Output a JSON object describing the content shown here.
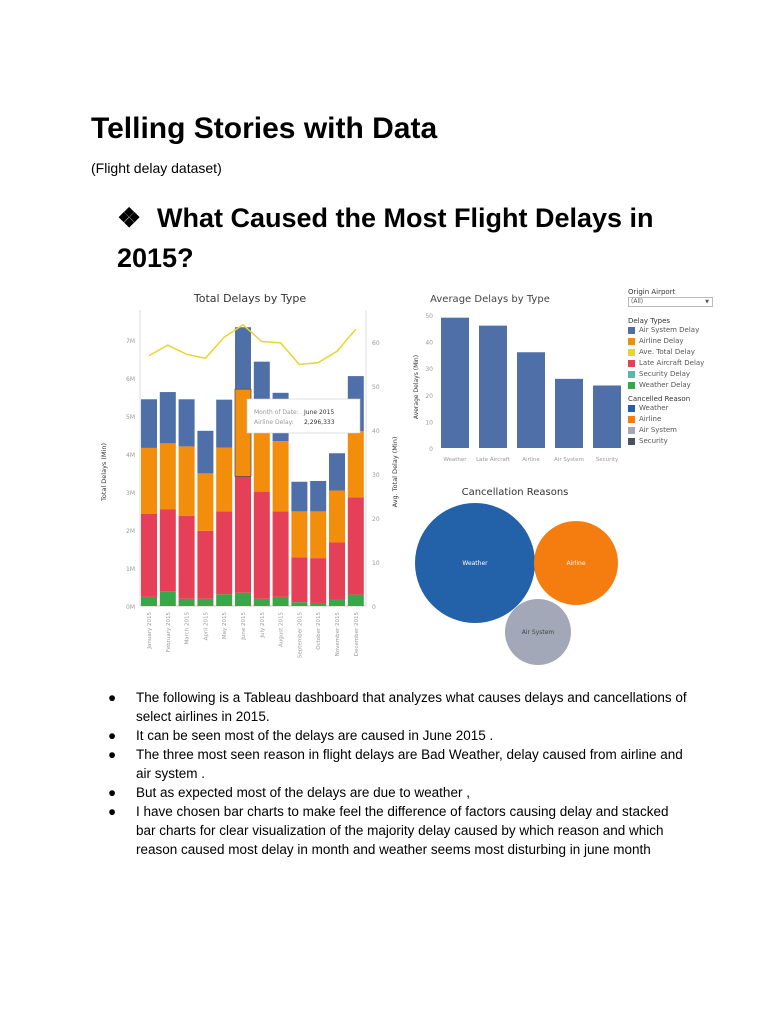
{
  "document": {
    "title": "Telling Stories with Data",
    "subtitle": "(Flight delay dataset)",
    "heading_bullet": "❖",
    "heading": "What Caused the Most Flight Delays in 2015?",
    "bullets": [
      "The following is a Tableau dashboard that analyzes what causes delays and cancellations of select airlines in 2015.",
      "It can be seen most of the delays are caused in June 2015 .",
      "The three most seen reason in flight delays are Bad Weather, delay caused  from airline and air system .",
      "But as expected most of the delays are due to weather ,",
      "I have chosen bar charts to make feel the difference of factors causing delay  and stacked bar charts for clear visualization of the majority delay caused by which reason and which reason caused most delay in month and weather seems most disturbing in june month"
    ]
  },
  "filter": {
    "label": "Origin Airport",
    "value": "(All)"
  },
  "legend": {
    "delay_title": "Delay Types",
    "delay_types": [
      {
        "label": "Air System Delay",
        "color": "#4e6fa8"
      },
      {
        "label": "Airline Delay",
        "color": "#f28e0c"
      },
      {
        "label": "Ave. Total Delay",
        "color": "#e8d62a"
      },
      {
        "label": "Late Aircraft Delay",
        "color": "#e63f58"
      },
      {
        "label": "Security Delay",
        "color": "#5ab9a6"
      },
      {
        "label": "Weather Delay",
        "color": "#37a84a"
      }
    ],
    "cancel_title": "Cancelled Reason",
    "cancel_types": [
      {
        "label": "Weather",
        "color": "#2361a8"
      },
      {
        "label": "Airline",
        "color": "#f57d0f"
      },
      {
        "label": "Air System",
        "color": "#a3a8b8"
      },
      {
        "label": "Security",
        "color": "#4c5060"
      }
    ]
  },
  "chart_data": [
    {
      "type": "bar",
      "stacked": true,
      "title": "Total Delays by Type",
      "ylabel": "Total Delays (Min)",
      "y2label": "Avg. Total Delay (Min)",
      "ylim": [
        0,
        7700000
      ],
      "y2lim": [
        0,
        65
      ],
      "yticks": [
        "0M",
        "1M",
        "2M",
        "3M",
        "4M",
        "5M",
        "6M",
        "7M"
      ],
      "y2ticks": [
        "0",
        "10",
        "20",
        "30",
        "40",
        "50",
        "60"
      ],
      "categories": [
        "January 2015",
        "February 2015",
        "March 2015",
        "April 2015",
        "May 2015",
        "June 2015",
        "July 2015",
        "August 2015",
        "September 2015",
        "October 2015",
        "November 2015",
        "December 2015"
      ],
      "series": [
        {
          "name": "Weather Delay",
          "color": "#37a84a",
          "values": [
            240000,
            390000,
            190000,
            190000,
            310000,
            350000,
            190000,
            240000,
            100000,
            80000,
            160000,
            300000
          ]
        },
        {
          "name": "Late Aircraft Delay",
          "color": "#e63f58",
          "values": [
            2190000,
            2150000,
            2180000,
            1790000,
            2180000,
            3060000,
            2820000,
            2250000,
            1180000,
            1180000,
            1510000,
            2560000
          ]
        },
        {
          "name": "Airline Delay",
          "color": "#f28e0c",
          "values": [
            1730000,
            1740000,
            1830000,
            1510000,
            1680000,
            2296333,
            1600000,
            1850000,
            1210000,
            1230000,
            1370000,
            1740000
          ]
        },
        {
          "name": "Air System Delay",
          "color": "#4e6fa8",
          "values": [
            1280000,
            1350000,
            1240000,
            1120000,
            1260000,
            1630000,
            1820000,
            1270000,
            780000,
            800000,
            980000,
            1450000
          ]
        }
      ],
      "line": {
        "name": "Ave. Total Delay",
        "color": "#e8d62a",
        "axis": "right",
        "values": [
          56.9,
          59.3,
          57.2,
          56.3,
          61.1,
          63.9,
          60.1,
          59.8,
          54.9,
          55.3,
          57.9,
          62.9
        ]
      },
      "tooltip": {
        "label1": "Month of Date:",
        "value1": "June 2015",
        "label2": "Airline Delay:",
        "value2": "2,296,333"
      }
    },
    {
      "type": "bar",
      "title": "Average Delays by Type",
      "ylabel": "Average Delays (Min)",
      "ylim": [
        0,
        50
      ],
      "yticks": [
        "0",
        "10",
        "20",
        "30",
        "40",
        "50"
      ],
      "categories": [
        "Weather",
        "Late Aircraft",
        "Airline",
        "Air System",
        "Security"
      ],
      "values": [
        49,
        46,
        36,
        26,
        23.5
      ],
      "color": "#4e6fa8"
    },
    {
      "type": "bubble",
      "title": "Cancellation Reasons",
      "categories": [
        "Weather",
        "Airline",
        "Air System"
      ],
      "colors": [
        "#2361a8",
        "#f57d0f",
        "#a3a8b8"
      ]
    }
  ]
}
